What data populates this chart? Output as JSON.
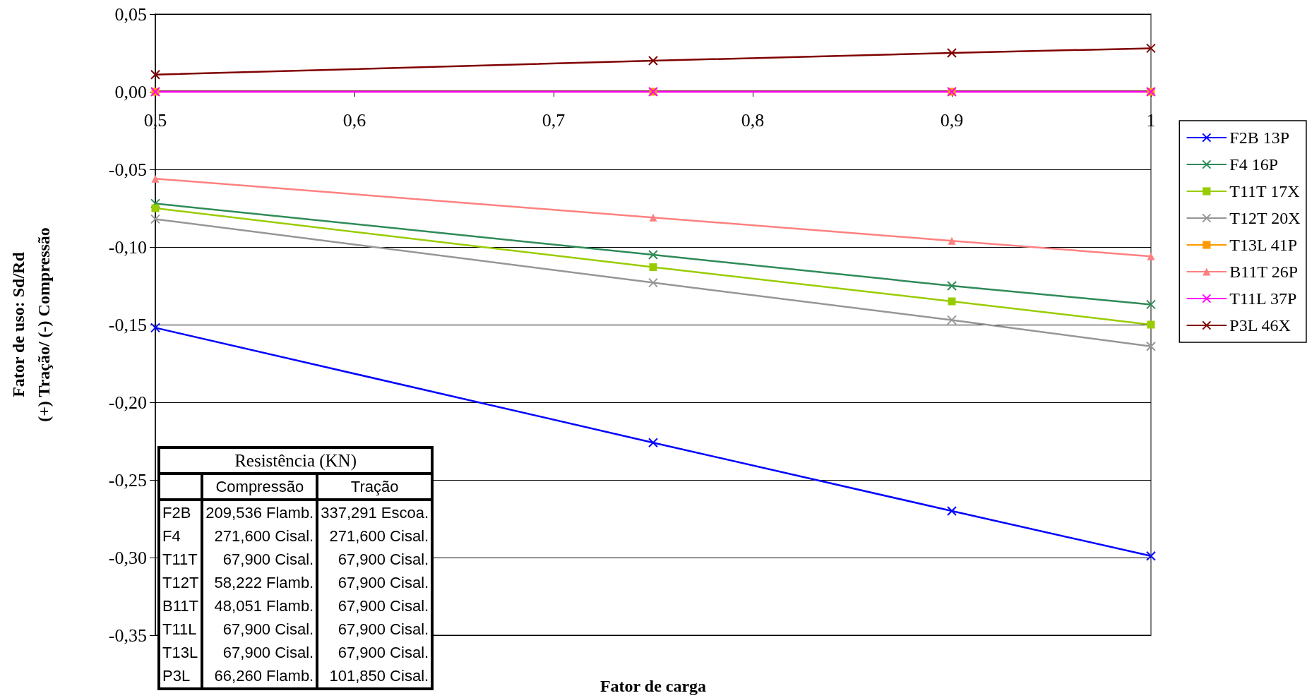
{
  "chart_data": {
    "type": "line",
    "xlabel": "Fator de carga",
    "ylabel": "Fator de uso: Sd/Rd\n(+) Tração/ (-) Compressão",
    "x": [
      0.5,
      0.75,
      0.9,
      1.0
    ],
    "xlim": [
      0.5,
      1.0
    ],
    "xticks": [
      {
        "value": 0.5,
        "label": "0,5"
      },
      {
        "value": 0.6,
        "label": "0,6"
      },
      {
        "value": 0.7,
        "label": "0,7"
      },
      {
        "value": 0.8,
        "label": "0,8"
      },
      {
        "value": 0.9,
        "label": "0,9"
      },
      1
    ],
    "ylim": [
      -0.35,
      0.05
    ],
    "yticks": [
      {
        "value": -0.35,
        "label": "-0,35"
      },
      {
        "value": -0.3,
        "label": "-0,30"
      },
      {
        "value": -0.25,
        "label": "-0,25"
      },
      {
        "value": -0.2,
        "label": "-0,20"
      },
      {
        "value": -0.15,
        "label": "-0,15"
      },
      {
        "value": -0.1,
        "label": "-0,10"
      },
      {
        "value": -0.05,
        "label": "-0,05"
      },
      {
        "value": 0,
        "label": "0,00"
      },
      {
        "value": 0.05,
        "label": "0,05"
      }
    ],
    "grid": "y",
    "legend": "right",
    "series": [
      {
        "name": "F2B 13P",
        "color": "#0000ff",
        "marker": "cross",
        "values": [
          -0.152,
          -0.226,
          -0.27,
          -0.299
        ]
      },
      {
        "name": "F4 16P",
        "color": "#2e8b57",
        "marker": "cross",
        "values": [
          -0.072,
          -0.105,
          -0.125,
          -0.137
        ]
      },
      {
        "name": "T11T 17X",
        "color": "#99cc00",
        "marker": "square",
        "values": [
          -0.075,
          -0.113,
          -0.135,
          -0.15
        ]
      },
      {
        "name": "T12T 20X",
        "color": "#969696",
        "marker": "cross",
        "values": [
          -0.082,
          -0.123,
          -0.147,
          -0.164
        ]
      },
      {
        "name": "T13L 41P",
        "color": "#ff9900",
        "marker": "square",
        "values": [
          0,
          0,
          0,
          0
        ]
      },
      {
        "name": "B11T 26P",
        "color": "#ff8080",
        "marker": "triangle",
        "values": [
          -0.056,
          -0.081,
          -0.096,
          -0.106
        ]
      },
      {
        "name": "T11L 37P",
        "color": "#ff00ff",
        "marker": "cross",
        "values": [
          0,
          0,
          0,
          0
        ]
      },
      {
        "name": "P3L 46X",
        "color": "#800000",
        "marker": "cross",
        "values": [
          0.011,
          0.02,
          0.025,
          0.028
        ]
      }
    ],
    "annotations": [
      "Resistência (KN)",
      "Compressão",
      "Tração",
      "F2B",
      "209,536 Flamb.",
      "337,291 Escoa.",
      "F4",
      "271,600 Cisal.",
      "271,600 Cisal.",
      "T11T",
      "67,900 Cisal.",
      "67,900 Cisal.",
      "T12T",
      "58,222 Flamb.",
      "67,900 Cisal.",
      "B11T",
      "48,051 Flamb.",
      "67,900 Cisal.",
      "T11L",
      "67,900 Cisal.",
      "67,900 Cisal.",
      "T13L",
      "67,900 Cisal.",
      "67,900 Cisal.",
      "P3L",
      "66,260 Flamb.",
      "101,850 Cisal."
    ]
  }
}
